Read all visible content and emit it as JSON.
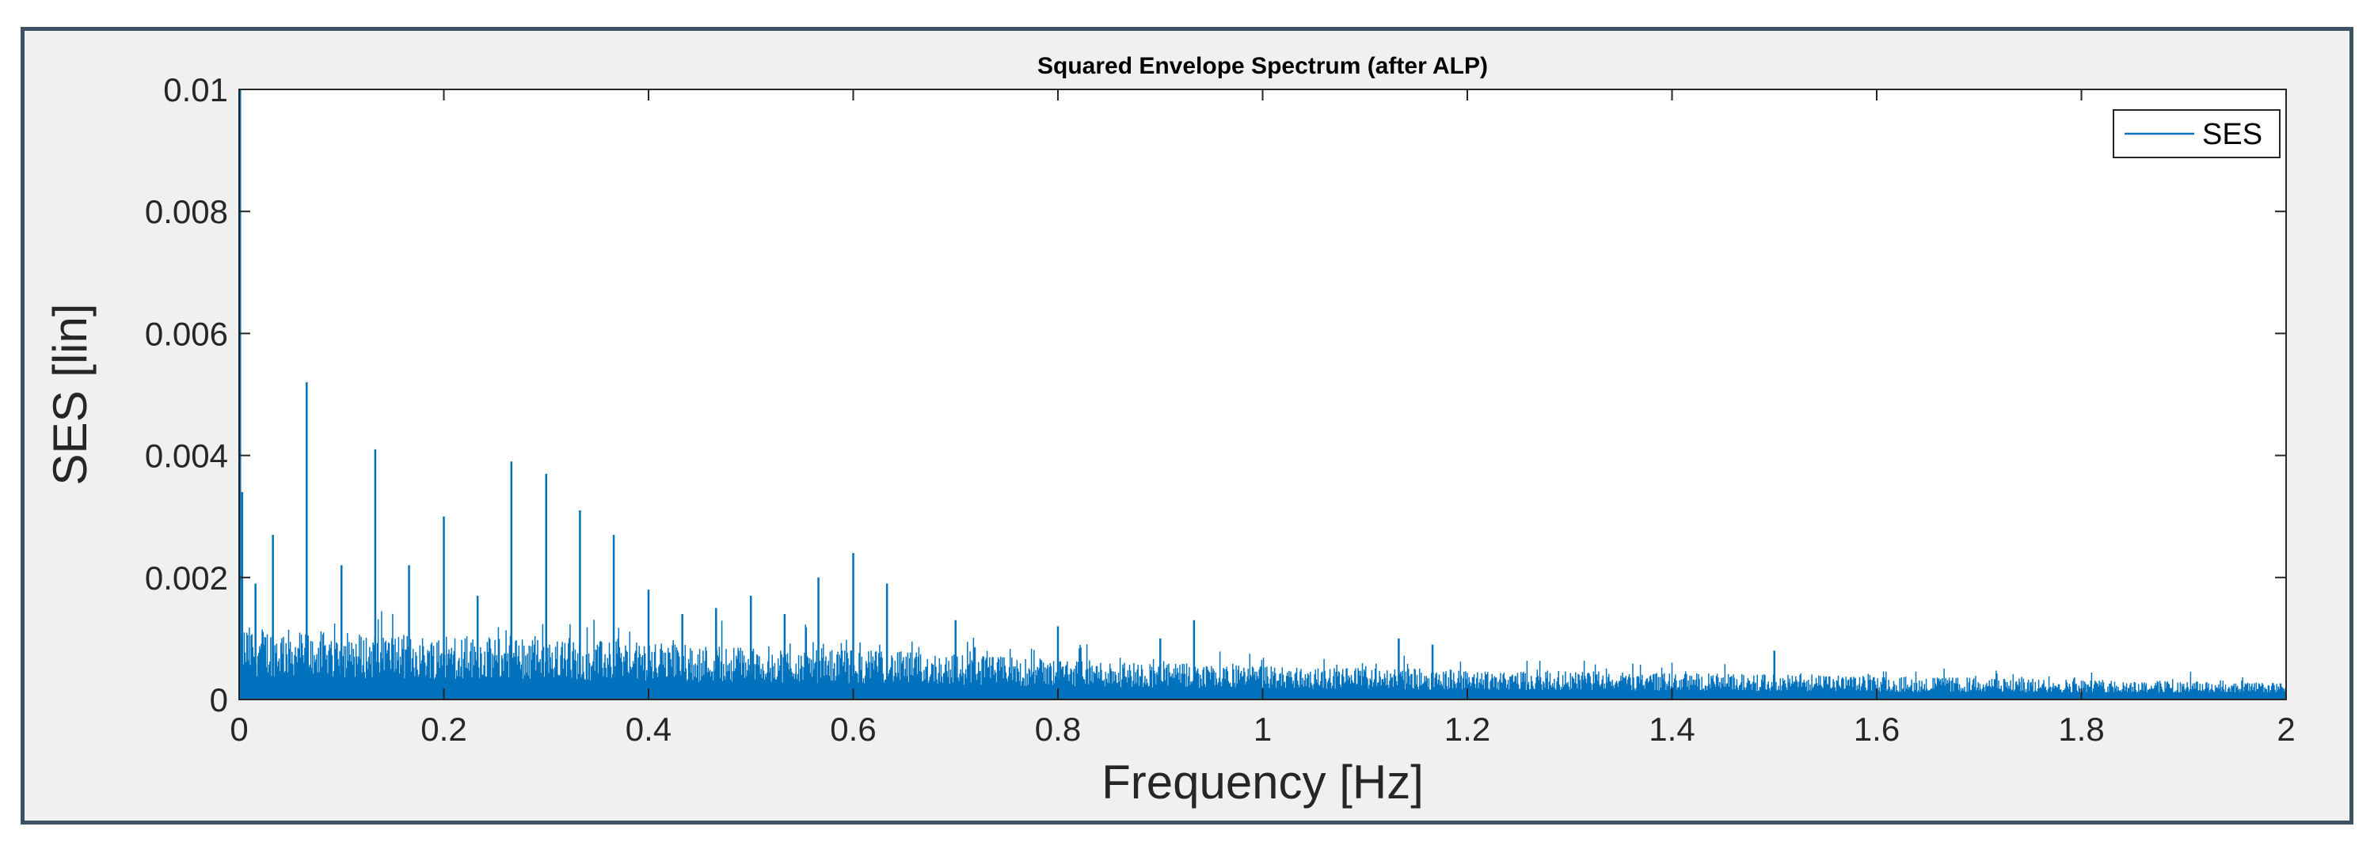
{
  "chart_data": {
    "type": "line",
    "title": "Squared Envelope Spectrum (after ALP)",
    "xlabel": "Frequency [Hz]",
    "ylabel": "SES [lin]",
    "xlim": [
      0,
      2
    ],
    "ylim": [
      0,
      0.01
    ],
    "xticks": [
      "0",
      "0.2",
      "0.4",
      "0.6",
      "0.8",
      "1",
      "1.2",
      "1.4",
      "1.6",
      "1.8",
      "2"
    ],
    "yticks": [
      "0",
      "0.002",
      "0.004",
      "0.006",
      "0.008",
      "0.01"
    ],
    "grid": false,
    "legend_position": "top-right",
    "series": [
      {
        "name": "SES",
        "color": "#0072bd",
        "noise_floor": [
          [
            0.0,
            0.0011
          ],
          [
            0.1,
            0.001
          ],
          [
            0.2,
            0.00095
          ],
          [
            0.3,
            0.0009
          ],
          [
            0.4,
            0.00085
          ],
          [
            0.5,
            0.0008
          ],
          [
            0.6,
            0.00075
          ],
          [
            0.7,
            0.00068
          ],
          [
            0.8,
            0.0006
          ],
          [
            0.9,
            0.00055
          ],
          [
            1.0,
            0.0005
          ],
          [
            1.2,
            0.00045
          ],
          [
            1.4,
            0.0004
          ],
          [
            1.6,
            0.00035
          ],
          [
            1.8,
            0.0003
          ],
          [
            2.0,
            0.00025
          ]
        ],
        "peaks": [
          [
            0.001,
            0.01
          ],
          [
            0.003,
            0.0034
          ],
          [
            0.016,
            0.0019
          ],
          [
            0.033,
            0.0027
          ],
          [
            0.066,
            0.0052
          ],
          [
            0.1,
            0.0022
          ],
          [
            0.133,
            0.0041
          ],
          [
            0.166,
            0.0022
          ],
          [
            0.2,
            0.003
          ],
          [
            0.233,
            0.0017
          ],
          [
            0.266,
            0.0039
          ],
          [
            0.3,
            0.0037
          ],
          [
            0.333,
            0.0031
          ],
          [
            0.366,
            0.0027
          ],
          [
            0.4,
            0.0018
          ],
          [
            0.433,
            0.0014
          ],
          [
            0.466,
            0.0015
          ],
          [
            0.5,
            0.0017
          ],
          [
            0.533,
            0.0014
          ],
          [
            0.566,
            0.002
          ],
          [
            0.6,
            0.0024
          ],
          [
            0.633,
            0.0019
          ],
          [
            0.7,
            0.0013
          ],
          [
            0.8,
            0.0012
          ],
          [
            0.9,
            0.001
          ],
          [
            0.933,
            0.0013
          ],
          [
            1.133,
            0.001
          ],
          [
            1.166,
            0.0009
          ],
          [
            1.5,
            0.0008
          ]
        ]
      }
    ]
  }
}
